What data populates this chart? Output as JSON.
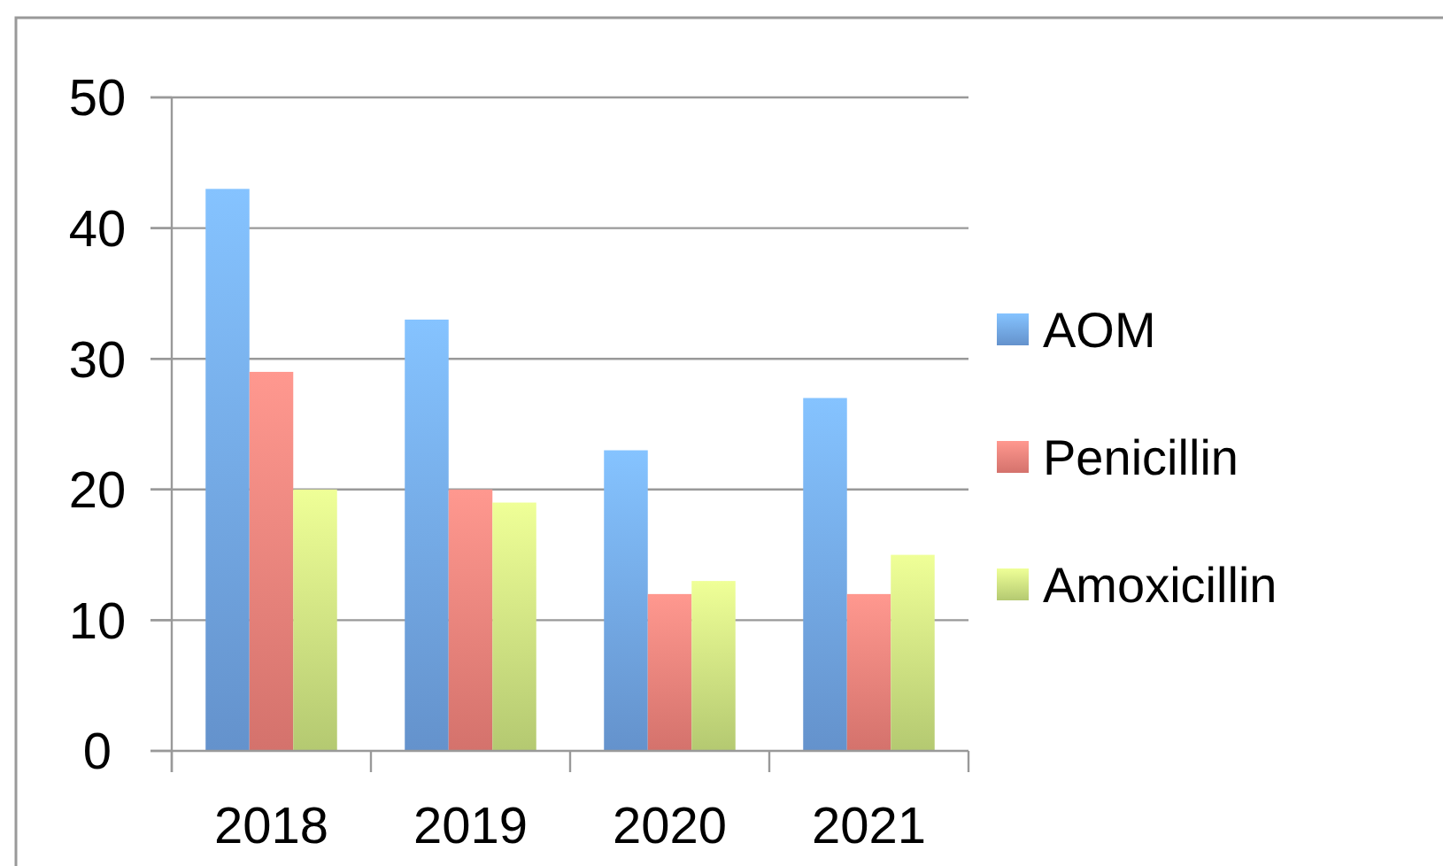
{
  "chart_data": {
    "type": "bar",
    "categories": [
      "2018",
      "2019",
      "2020",
      "2021"
    ],
    "series": [
      {
        "name": "AOM",
        "color": "#6fa3e3",
        "values": [
          43,
          33,
          23,
          27
        ]
      },
      {
        "name": "Penicillin",
        "color": "#ec7f78",
        "values": [
          29,
          20,
          12,
          12
        ]
      },
      {
        "name": "Amoxicillin",
        "color": "#c8e07e",
        "values": [
          20,
          19,
          13,
          15
        ]
      }
    ],
    "ylim": [
      0,
      50
    ],
    "yticks": [
      0,
      10,
      20,
      30,
      40,
      50
    ],
    "grid": "y",
    "legend": "right"
  }
}
